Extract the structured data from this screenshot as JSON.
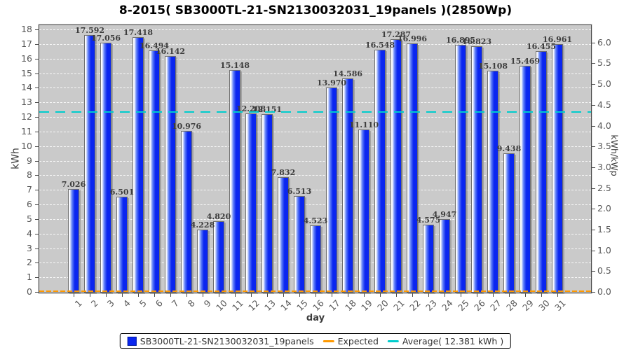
{
  "chart_data": {
    "type": "bar",
    "title": "8-2015( SB3000TL-21-SN2130032031_19panels )(2850Wp)",
    "xlabel": "day",
    "ylabel_left": "kWh",
    "ylabel_right": "kWh/kWp",
    "ylim_left": [
      0,
      18
    ],
    "ylim_right": [
      0.0,
      6.3
    ],
    "kwp_factor": 2.85,
    "grid": "horizontal white dashed, every 1 kWh",
    "legend_position": "bottom",
    "yticks_left": [
      "0",
      "1",
      "2",
      "3",
      "4",
      "5",
      "6",
      "7",
      "8",
      "9",
      "10",
      "11",
      "12",
      "13",
      "14",
      "15",
      "16",
      "17",
      "18"
    ],
    "yticks_right": [
      "0.0",
      "0.5",
      "1.0",
      "1.5",
      "2.0",
      "2.5",
      "3.0",
      "3.5",
      "4.0",
      "4.5",
      "5.0",
      "5.5",
      "6.0"
    ],
    "categories": [
      "1",
      "2",
      "3",
      "4",
      "5",
      "6",
      "7",
      "8",
      "9",
      "10",
      "11",
      "12",
      "13",
      "14",
      "15",
      "16",
      "17",
      "18",
      "19",
      "20",
      "21",
      "22",
      "23",
      "24",
      "25",
      "26",
      "27",
      "28",
      "29",
      "30",
      "31"
    ],
    "series": [
      {
        "name": "SB3000TL-21-SN2130032031_19panels",
        "values": [
          7.026,
          17.592,
          17.056,
          6.501,
          17.418,
          16.494,
          16.142,
          10.976,
          4.228,
          4.82,
          15.148,
          12.208,
          12.151,
          7.832,
          6.513,
          4.523,
          13.97,
          14.586,
          11.11,
          16.548,
          17.287,
          16.996,
          4.575,
          4.947,
          16.895,
          16.823,
          15.108,
          9.438,
          15.469,
          16.455,
          16.961
        ],
        "value_labels": [
          "7.026",
          "17.592",
          "17.056",
          "6.501",
          "17.418",
          "16.494",
          "16.142",
          "10.976",
          "4.228",
          "4.820",
          "15.148",
          "12.208",
          "12.151",
          "7.832",
          "6.513",
          "4.523",
          "13.970",
          "14.586",
          "11.110",
          "16.548",
          "17.287",
          "16.996",
          "4.575",
          "4.947",
          "16.895",
          "16.823",
          "15.108",
          "9.438",
          "15.469",
          "16.455",
          "16.961"
        ]
      }
    ],
    "average_value": 12.381,
    "expected_line_value": 0
  },
  "legend": {
    "series_label": "SB3000TL-21-SN2130032031_19panels",
    "expected_label": "Expected",
    "average_label": "Average( 12.381 kWh )"
  },
  "colors": {
    "bar_blue": "#0a26f0",
    "expected_orange": "#ff9900",
    "average_cyan": "#00cccc",
    "plot_background": "#cacaca",
    "gridline_white": "#ffffff"
  }
}
